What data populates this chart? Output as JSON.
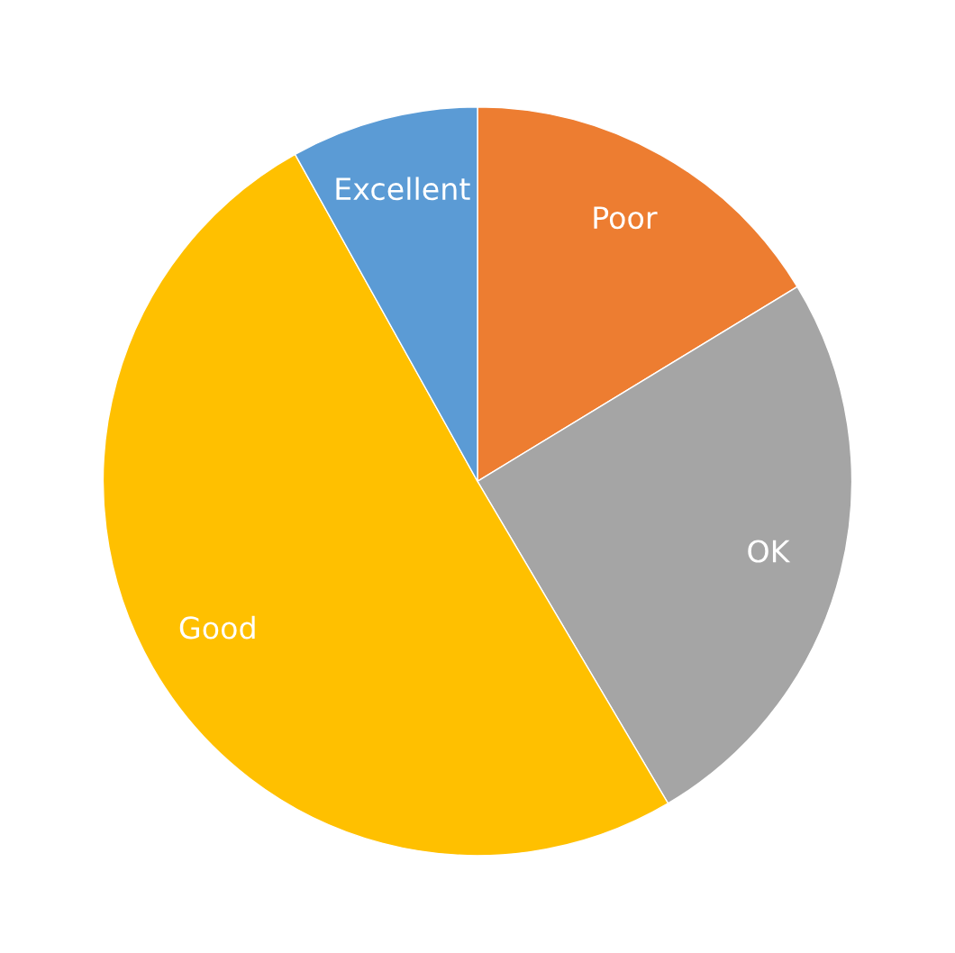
{
  "chart_data": {
    "type": "pie",
    "categories": [
      "Poor",
      "OK",
      "Good",
      "Excellent"
    ],
    "values": [
      16.3,
      25.2,
      50.4,
      8.1
    ],
    "colors": [
      "#ed7d31",
      "#a5a5a5",
      "#ffc000",
      "#5b9bd5"
    ]
  }
}
